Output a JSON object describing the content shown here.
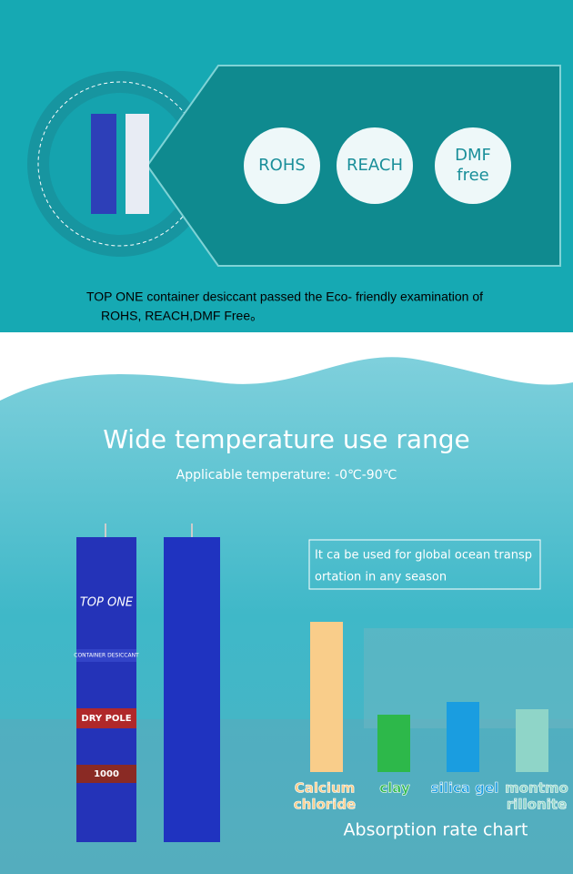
{
  "top_panel": {
    "badges": [
      [
        "ROHS"
      ],
      [
        "REACH"
      ],
      [
        "DMF",
        "free"
      ]
    ],
    "caption": [
      "TOP ONE container desiccant passed the Eco- friendly examination of",
      "ROHS, REACH,DMF Free。"
    ]
  },
  "bottom_panel": {
    "title": "Wide temperature use range",
    "subtitle": "Applicable temperature: -0℃-90℃",
    "note": [
      "It ca be used for global ocean transp",
      "ortation in any season"
    ],
    "product_labels": {
      "brand": "TOP ONE",
      "line": "CONTAINER DESICCANT",
      "name": "DRY POLE",
      "size": "1000"
    }
  },
  "chart": {
    "type": "bar",
    "title": "Absorption rate chart",
    "categories": [
      [
        "Calcium",
        "chloride"
      ],
      [
        "clay"
      ],
      [
        "silica gel"
      ],
      [
        "montmo",
        "rillonite"
      ]
    ],
    "values": [
      165,
      63,
      77,
      69
    ],
    "colors": [
      "#f9cd8a",
      "#2db84a",
      "#1a9de0",
      "#8fd5c8"
    ],
    "ylim": [
      0,
      180
    ]
  }
}
